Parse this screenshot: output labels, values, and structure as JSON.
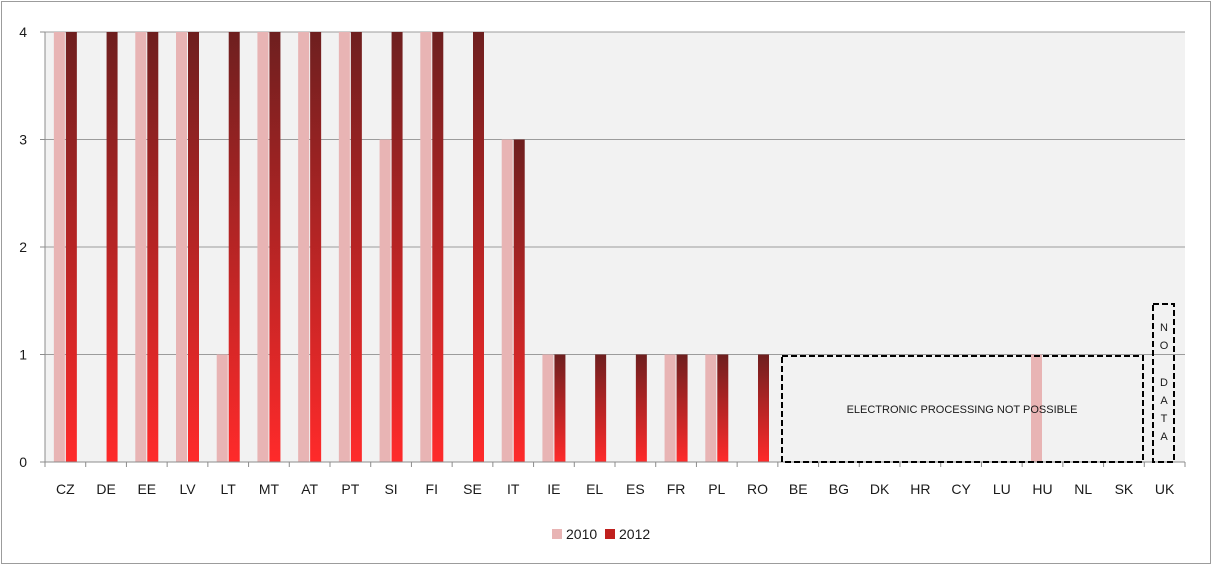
{
  "chart_data": {
    "type": "bar",
    "categories": [
      "CZ",
      "DE",
      "EE",
      "LV",
      "LT",
      "MT",
      "AT",
      "PT",
      "SI",
      "FI",
      "SE",
      "IT",
      "IE",
      "EL",
      "ES",
      "FR",
      "PL",
      "RO",
      "BE",
      "BG",
      "DK",
      "HR",
      "CY",
      "LU",
      "HU",
      "NL",
      "SK",
      "UK"
    ],
    "series": [
      {
        "name": "2010",
        "values": [
          4,
          0,
          4,
          4,
          1,
          4,
          4,
          4,
          3,
          4,
          0,
          3,
          1,
          0,
          0,
          1,
          1,
          0,
          0,
          0,
          0,
          0,
          0,
          0,
          1,
          0,
          0,
          0
        ]
      },
      {
        "name": "2012",
        "values": [
          4,
          4,
          4,
          4,
          4,
          4,
          4,
          4,
          4,
          4,
          4,
          3,
          1,
          1,
          1,
          1,
          1,
          1,
          0,
          0,
          0,
          0,
          0,
          0,
          0,
          0,
          0,
          0
        ]
      }
    ],
    "ylim": [
      0,
      4
    ],
    "yticks": [
      "0",
      "1",
      "2",
      "3",
      "4"
    ],
    "grid": true,
    "legend_position": "bottom",
    "colors": {
      "2010": "#e8b4b4",
      "2012_top": "#6e1f1f",
      "2012_bottom": "#ff2a2a",
      "plot_bg": "#f2f2f2",
      "grid": "#9c9c9c"
    },
    "annotations": {
      "electronic": "ELECTRONIC PROCESSING NOT POSSIBLE",
      "no_data": [
        "N",
        "O",
        "D",
        "A",
        "T",
        "A"
      ]
    }
  }
}
